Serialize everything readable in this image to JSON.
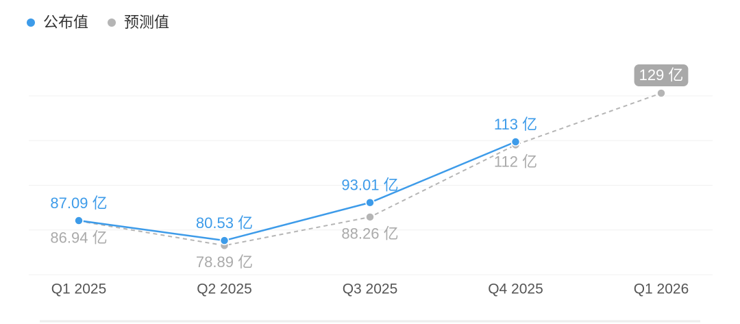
{
  "chart_data": {
    "type": "line",
    "categories": [
      "Q1 2025",
      "Q2 2025",
      "Q3 2025",
      "Q4 2025",
      "Q1 2026"
    ],
    "series": [
      {
        "name": "公布值",
        "color": "#3d9be9",
        "values": [
          87.09,
          80.53,
          93.01,
          113,
          null
        ],
        "value_labels": [
          "87.09 亿",
          "80.53 亿",
          "93.01 亿",
          "113 亿",
          null
        ]
      },
      {
        "name": "预测值",
        "color": "#b5b5b5",
        "values": [
          86.94,
          78.89,
          88.26,
          112,
          129
        ],
        "value_labels": [
          "86.94 亿",
          "78.89 亿",
          "88.26 亿",
          "112 亿",
          "129 亿"
        ]
      }
    ],
    "ylim": [
      69.3,
      128.1
    ],
    "grid": true
  }
}
